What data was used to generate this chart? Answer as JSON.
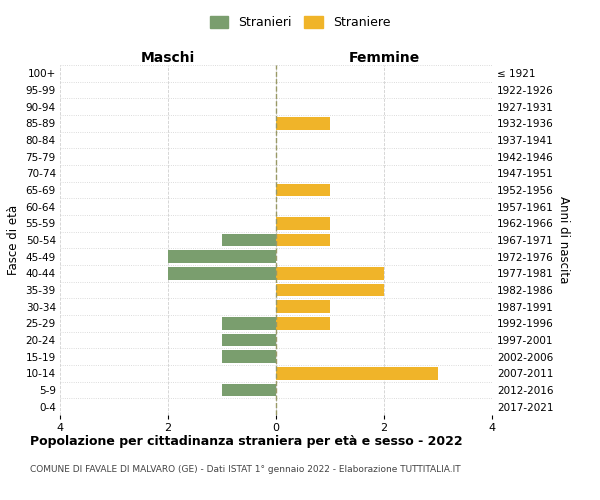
{
  "age_groups": [
    "100+",
    "95-99",
    "90-94",
    "85-89",
    "80-84",
    "75-79",
    "70-74",
    "65-69",
    "60-64",
    "55-59",
    "50-54",
    "45-49",
    "40-44",
    "35-39",
    "30-34",
    "25-29",
    "20-24",
    "15-19",
    "10-14",
    "5-9",
    "0-4"
  ],
  "birth_years": [
    "≤ 1921",
    "1922-1926",
    "1927-1931",
    "1932-1936",
    "1937-1941",
    "1942-1946",
    "1947-1951",
    "1952-1956",
    "1957-1961",
    "1962-1966",
    "1967-1971",
    "1972-1976",
    "1977-1981",
    "1982-1986",
    "1987-1991",
    "1992-1996",
    "1997-2001",
    "2002-2006",
    "2007-2011",
    "2012-2016",
    "2017-2021"
  ],
  "maschi": [
    0,
    0,
    0,
    0,
    0,
    0,
    0,
    0,
    0,
    0,
    1,
    2,
    2,
    0,
    0,
    1,
    1,
    1,
    0,
    1,
    0
  ],
  "femmine": [
    0,
    0,
    0,
    1,
    0,
    0,
    0,
    1,
    0,
    1,
    1,
    0,
    2,
    2,
    1,
    1,
    0,
    0,
    3,
    0,
    0
  ],
  "maschi_color": "#7a9e6e",
  "femmine_color": "#f0b429",
  "background_color": "#ffffff",
  "grid_color": "#d0d0d0",
  "title": "Popolazione per cittadinanza straniera per età e sesso - 2022",
  "subtitle": "COMUNE DI FAVALE DI MALVARO (GE) - Dati ISTAT 1° gennaio 2022 - Elaborazione TUTTITALIA.IT",
  "legend_maschi": "Stranieri",
  "legend_femmine": "Straniere",
  "xlabel_left": "Maschi",
  "xlabel_right": "Femmine",
  "ylabel_left": "Fasce di età",
  "ylabel_right": "Anni di nascita",
  "xlim": 4
}
